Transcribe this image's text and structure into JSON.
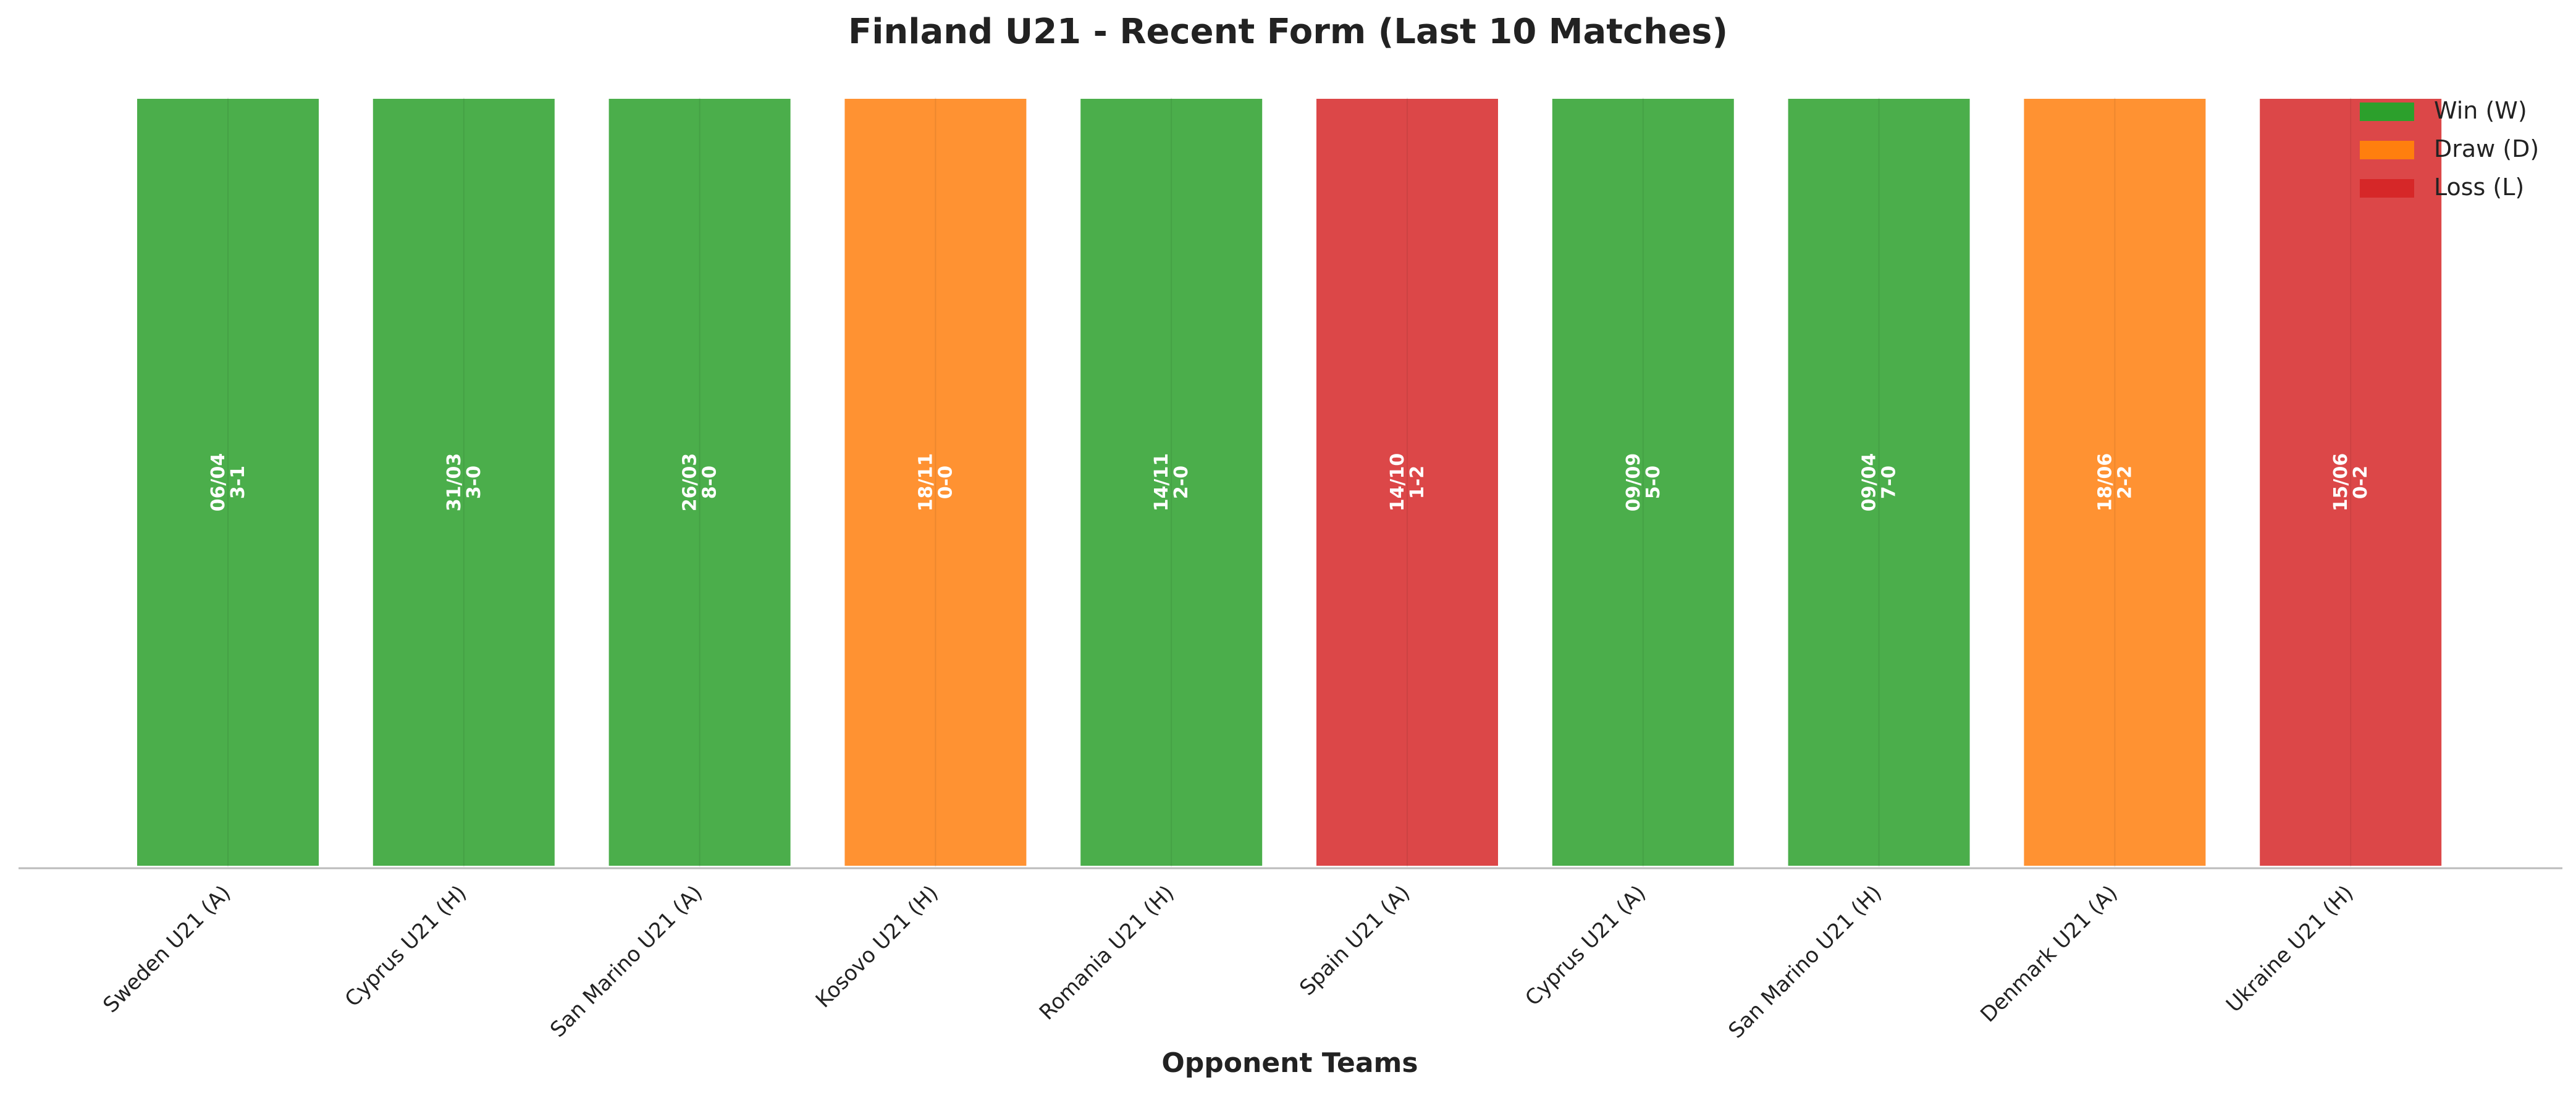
{
  "chart_data": {
    "type": "bar",
    "title": "Finland U21 - Recent Form (Last 10 Matches)",
    "xlabel": "Opponent Teams",
    "ylabel": "",
    "ylim": [
      0,
      1
    ],
    "grid": false,
    "legend_position": "top-right",
    "categories": [
      "Sweden U21 (A)",
      "Cyprus U21 (H)",
      "San Marino U21 (A)",
      "Kosovo U21 (H)",
      "Romania U21 (H)",
      "Spain U21 (A)",
      "Cyprus U21 (A)",
      "San Marino U21 (H)",
      "Denmark U21 (A)",
      "Ukraine U21 (H)"
    ],
    "values": [
      1,
      1,
      1,
      1,
      1,
      1,
      1,
      1,
      1,
      1
    ],
    "results": [
      "W",
      "W",
      "W",
      "D",
      "W",
      "L",
      "W",
      "W",
      "D",
      "L"
    ],
    "dates": [
      "06/04",
      "31/03",
      "26/03",
      "18/11",
      "14/11",
      "14/10",
      "09/09",
      "09/04",
      "18/06",
      "15/06"
    ],
    "scores": [
      "3-1",
      "3-0",
      "8-0",
      "0-0",
      "2-0",
      "1-2",
      "5-0",
      "7-0",
      "2-2",
      "0-2"
    ],
    "legend": [
      {
        "key": "W",
        "label": "Win (W)",
        "color": "#2ca02c"
      },
      {
        "key": "D",
        "label": "Draw (D)",
        "color": "#ff7f0e"
      },
      {
        "key": "L",
        "label": "Loss (L)",
        "color": "#d62728"
      }
    ],
    "colors": {
      "W": "#2ca02c",
      "D": "#ff7f0e",
      "L": "#d62728"
    }
  }
}
